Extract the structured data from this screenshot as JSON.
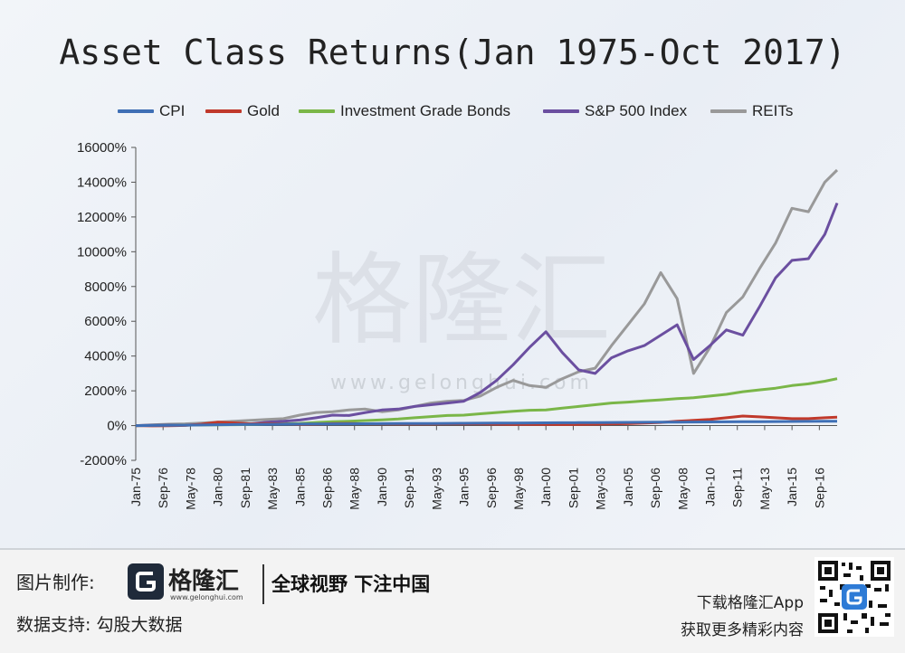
{
  "title": "Asset Class Returns(Jan 1975-Oct 2017)",
  "watermark": {
    "brand": "格隆汇",
    "url": "www.gelonghui.com"
  },
  "footer": {
    "credit_label": "图片制作:",
    "logo_name": "格隆汇",
    "logo_url": "www.gelonghui.com",
    "slogan": "全球视野 下注中国",
    "data_support": "数据支持:  勾股大数据",
    "download_app": "下载格隆汇App",
    "more_content": "获取更多精彩内容"
  },
  "chart_data": {
    "type": "line",
    "title": "Asset Class Returns(Jan 1975-Oct 2017)",
    "xlabel": "",
    "ylabel": "",
    "y_unit": "%",
    "ylim": [
      -2000,
      16000
    ],
    "yticks": [
      -2000,
      0,
      2000,
      4000,
      6000,
      8000,
      10000,
      12000,
      14000,
      16000
    ],
    "ytick_labels": [
      "-2000%",
      "0%",
      "2000%",
      "4000%",
      "6000%",
      "8000%",
      "10000%",
      "12000%",
      "14000%",
      "16000%"
    ],
    "x_start": "Jan-75",
    "x_end": "Oct-17",
    "xtick_labels": [
      "Jan-75",
      "Sep-76",
      "May-78",
      "Jan-80",
      "Sep-81",
      "May-83",
      "Jan-85",
      "Sep-86",
      "May-88",
      "Jan-90",
      "Sep-91",
      "May-93",
      "Jan-95",
      "Sep-96",
      "May-98",
      "Jan-00",
      "Sep-01",
      "May-03",
      "Jan-05",
      "Sep-06",
      "May-08",
      "Jan-10",
      "Sep-11",
      "May-13",
      "Jan-15",
      "Sep-16"
    ],
    "grid": false,
    "legend_position": "top",
    "x": [
      "Jan-75",
      "Jan-76",
      "Jan-77",
      "Jan-78",
      "Jan-79",
      "Jan-80",
      "Jan-81",
      "Jan-82",
      "Jan-83",
      "Jan-84",
      "Jan-85",
      "Jan-86",
      "Jan-87",
      "Jan-88",
      "Jan-89",
      "Jan-90",
      "Jan-91",
      "Jan-92",
      "Jan-93",
      "Jan-94",
      "Jan-95",
      "Jan-96",
      "Jan-97",
      "Jan-98",
      "Jan-99",
      "Jan-00",
      "Jan-01",
      "Jan-02",
      "Jan-03",
      "Jan-04",
      "Jan-05",
      "Jan-06",
      "Jan-07",
      "Jan-08",
      "Jan-09",
      "Jan-10",
      "Jan-11",
      "Jan-12",
      "Jan-13",
      "Jan-14",
      "Jan-15",
      "Jan-16",
      "Jan-17",
      "Oct-17"
    ],
    "series": [
      {
        "name": "CPI",
        "color": "#3f6fb5",
        "values": [
          0,
          10,
          15,
          25,
          35,
          50,
          60,
          70,
          75,
          80,
          85,
          90,
          95,
          100,
          105,
          110,
          115,
          120,
          125,
          130,
          135,
          140,
          145,
          150,
          155,
          160,
          165,
          170,
          175,
          180,
          185,
          190,
          195,
          200,
          205,
          210,
          215,
          220,
          225,
          230,
          235,
          240,
          245,
          250
        ]
      },
      {
        "name": "Gold",
        "color": "#c0392b",
        "values": [
          0,
          -20,
          -15,
          10,
          80,
          200,
          160,
          100,
          120,
          90,
          70,
          80,
          110,
          120,
          100,
          100,
          90,
          90,
          90,
          100,
          100,
          100,
          80,
          70,
          70,
          70,
          60,
          70,
          80,
          100,
          110,
          150,
          180,
          250,
          300,
          350,
          450,
          550,
          500,
          450,
          400,
          400,
          450,
          480
        ]
      },
      {
        "name": "Investment Grade Bonds",
        "color": "#7ab648",
        "values": [
          0,
          10,
          20,
          25,
          35,
          40,
          50,
          60,
          80,
          100,
          130,
          180,
          220,
          250,
          290,
          330,
          380,
          450,
          520,
          580,
          600,
          680,
          750,
          820,
          880,
          900,
          1000,
          1100,
          1200,
          1300,
          1350,
          1420,
          1480,
          1550,
          1600,
          1700,
          1800,
          1950,
          2050,
          2150,
          2300,
          2400,
          2550,
          2700
        ]
      },
      {
        "name": "S&P 500 Index",
        "color": "#6b4fa0",
        "values": [
          0,
          30,
          40,
          30,
          50,
          100,
          120,
          100,
          200,
          250,
          320,
          450,
          600,
          580,
          750,
          900,
          950,
          1100,
          1200,
          1300,
          1400,
          1900,
          2600,
          3500,
          4500,
          5400,
          4200,
          3200,
          3000,
          3900,
          4300,
          4600,
          5200,
          5800,
          3800,
          4600,
          5500,
          5200,
          6800,
          8500,
          9500,
          9600,
          11000,
          12800
        ]
      },
      {
        "name": "REITs",
        "color": "#999999",
        "values": [
          0,
          40,
          80,
          100,
          150,
          200,
          250,
          300,
          350,
          400,
          600,
          750,
          800,
          900,
          950,
          800,
          900,
          1100,
          1300,
          1400,
          1450,
          1700,
          2200,
          2600,
          2300,
          2200,
          2700,
          3100,
          3300,
          4600,
          5800,
          7000,
          8800,
          7300,
          3000,
          4500,
          6500,
          7400,
          9000,
          10500,
          12500,
          12300,
          14000,
          14700
        ]
      }
    ]
  }
}
